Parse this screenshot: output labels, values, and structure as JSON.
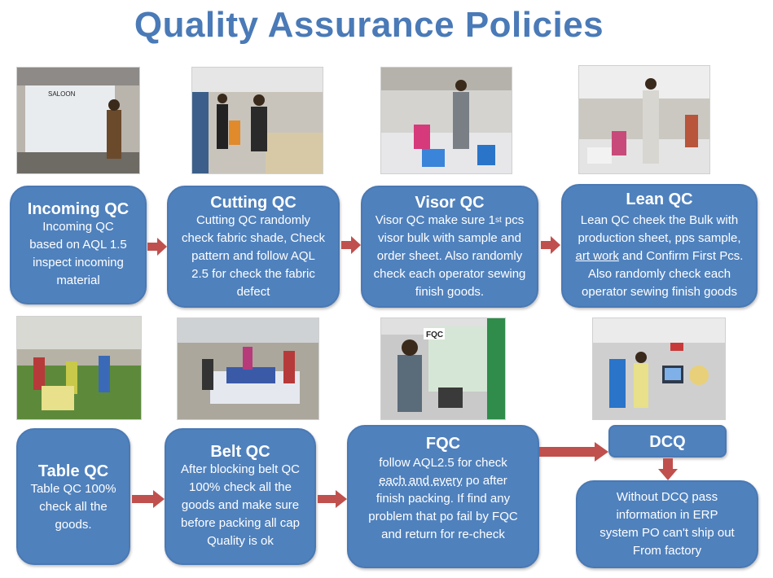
{
  "title": "Quality Assurance Policies",
  "colors": {
    "title": "#4a7ab7",
    "box": "#4f81bd",
    "arrow": "#c0504d"
  },
  "photos": [
    {
      "name": "photo-incoming",
      "scene": "fabric inspection",
      "sign": "SALOON"
    },
    {
      "name": "photo-cutting",
      "scene": "cutting table"
    },
    {
      "name": "photo-visor",
      "scene": "visor sewing line"
    },
    {
      "name": "photo-lean",
      "scene": "sewing floor"
    },
    {
      "name": "photo-table",
      "scene": "production floor"
    },
    {
      "name": "photo-belt",
      "scene": "belt blocking table"
    },
    {
      "name": "photo-fqc",
      "scene": "final inspection",
      "sign": "FQC"
    },
    {
      "name": "photo-dcq",
      "scene": "ERP station"
    }
  ],
  "steps": {
    "incoming": {
      "title": "Incoming QC",
      "lines": [
        "Incoming QC",
        "based on AQL 1.5",
        "inspect incoming",
        "material"
      ]
    },
    "cutting": {
      "title": "Cutting QC",
      "lines": [
        "Cutting QC randomly",
        "check fabric shade, Check",
        "pattern and follow AQL",
        "2.5 for check the fabric",
        "defect"
      ]
    },
    "visor": {
      "title": "Visor QC",
      "line1_pre": "Visor QC make sure 1",
      "line1_sup": "st",
      "line1_post": " pcs",
      "lines": [
        "visor bulk with sample and",
        "order sheet. Also randomly",
        "check each operator sewing",
        "finish goods."
      ]
    },
    "lean": {
      "title": "Lean QC",
      "lines": [
        "Lean QC cheek the Bulk with",
        "production sheet, pps sample,"
      ],
      "line3_link": "art work",
      "line3_post": " and Confirm First Pcs.",
      "lines2": [
        "Also randomly check each",
        "operator sewing finish goods"
      ]
    },
    "table": {
      "title": "Table QC",
      "lines": [
        "Table QC 100%",
        "check all the",
        "goods."
      ]
    },
    "belt": {
      "title": "Belt QC",
      "lines": [
        "After blocking belt QC",
        "100% check all the",
        "goods and make sure",
        "before packing all cap",
        "Quality is ok"
      ]
    },
    "fqc": {
      "title": "FQC",
      "line1": "follow AQL2.5 for check",
      "line2_dotted": "each and every",
      "line2_post": " po after",
      "lines": [
        "finish packing. If find any",
        "problem that po fail by FQC",
        "and return for re-check"
      ]
    },
    "dcq": {
      "title": "DCQ",
      "lines": [
        "Without DCQ pass",
        "information  in ERP",
        "system PO can't ship out",
        "From factory"
      ]
    }
  }
}
